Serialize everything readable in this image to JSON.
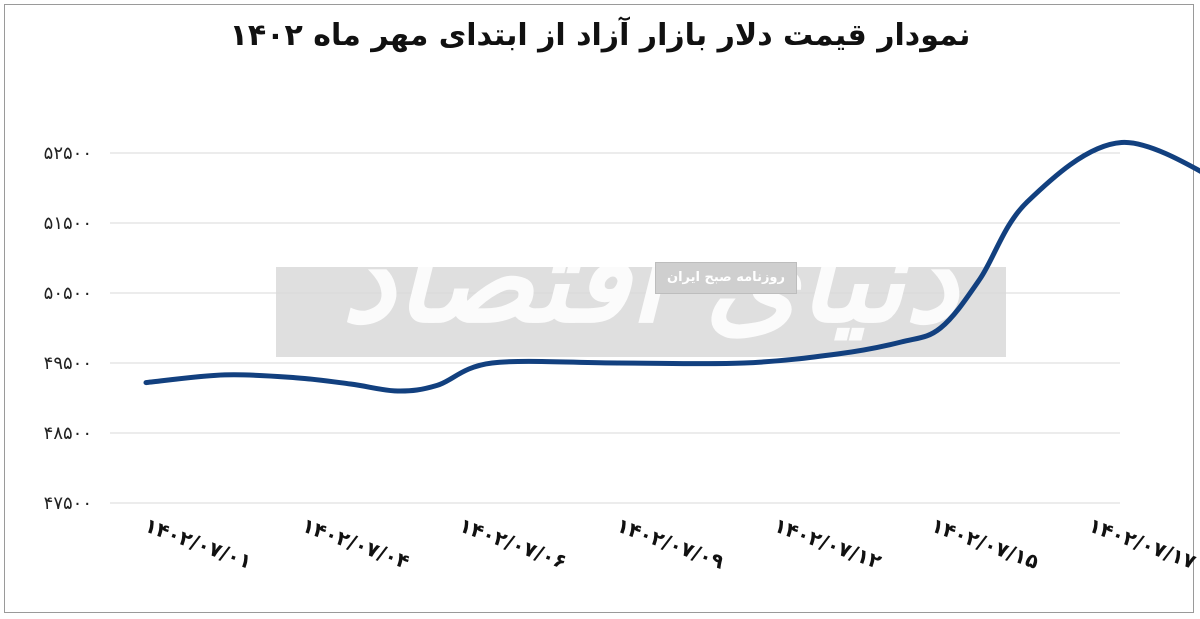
{
  "chart_data": {
    "type": "line",
    "title": "نمودار قیمت دلار بازار آزاد از ابتدای مهر ماه ۱۴۰۲",
    "xlabel": "",
    "ylabel": "",
    "x": [
      "۱۴۰۲/۰۷/۰۱",
      "۱۴۰۲/۰۷/۰۴",
      "۱۴۰۲/۰۷/۰۶",
      "۱۴۰۲/۰۷/۰۹",
      "۱۴۰۲/۰۷/۱۲",
      "۱۴۰۲/۰۷/۱۵",
      "۱۴۰۲/۰۷/۱۷"
    ],
    "yticks": [
      47500,
      48500,
      49500,
      50500,
      51500,
      52500
    ],
    "ytick_labels": [
      "۴۷۵۰۰",
      "۴۸۵۰۰",
      "۴۹۵۰۰",
      "۵۰۵۰۰",
      "۵۱۵۰۰",
      "۵۲۵۰۰"
    ],
    "ylim": [
      47500,
      52500
    ],
    "grid": true,
    "series": [
      {
        "points": [
          {
            "x": 0.0,
            "y": 49220
          },
          {
            "x": 0.5,
            "y": 49330
          },
          {
            "x": 0.95,
            "y": 49290
          },
          {
            "x": 1.3,
            "y": 49200
          },
          {
            "x": 1.6,
            "y": 49100
          },
          {
            "x": 1.85,
            "y": 49180
          },
          {
            "x": 2.2,
            "y": 49500
          },
          {
            "x": 3.0,
            "y": 49500
          },
          {
            "x": 3.8,
            "y": 49500
          },
          {
            "x": 4.4,
            "y": 49630
          },
          {
            "x": 4.8,
            "y": 49800
          },
          {
            "x": 5.05,
            "y": 50000
          },
          {
            "x": 5.3,
            "y": 50700
          },
          {
            "x": 5.6,
            "y": 51800
          },
          {
            "x": 6.2,
            "y": 52650
          },
          {
            "x": 6.9,
            "y": 52000
          }
        ]
      }
    ],
    "colors": {
      "line": "#12407f",
      "grid": "#d9d9d9",
      "frame": "#9a9a9a"
    }
  },
  "watermark": {
    "brand": "دنیای اقتصاد",
    "tag": "روزنامه صبح ایران"
  }
}
